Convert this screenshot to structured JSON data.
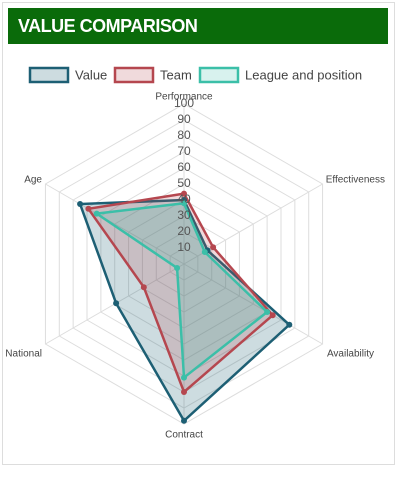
{
  "chart_data": {
    "type": "radar",
    "title": "VALUE COMPARISON",
    "categories": [
      "Performance",
      "Effectiveness",
      "Availability",
      "Contract",
      "National",
      "Age"
    ],
    "rlim": [
      0,
      100
    ],
    "rticks": [
      10,
      20,
      30,
      40,
      50,
      60,
      70,
      80,
      90,
      100
    ],
    "grid": true,
    "legend": "top",
    "series": [
      {
        "name": "Value",
        "color": "#1d5f74",
        "values": [
          40,
          17,
          76,
          98,
          49,
          75
        ]
      },
      {
        "name": "Team",
        "color": "#b5474f",
        "values": [
          44,
          21,
          64,
          80,
          29,
          69
        ]
      },
      {
        "name": "League and position",
        "color": "#3bbfa8",
        "values": [
          38,
          15,
          60,
          71,
          5,
          63
        ]
      }
    ]
  }
}
